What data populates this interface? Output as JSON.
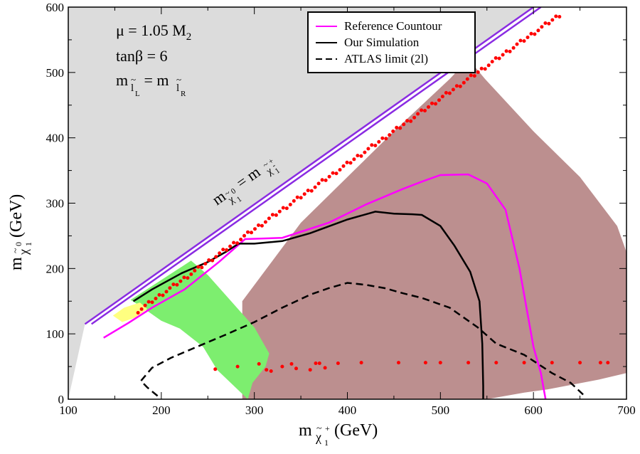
{
  "chart_data": {
    "type": "line",
    "xlabel": "m(χ̃1±) (GeV)",
    "ylabel": "m(χ̃1⁰) (GeV)",
    "xlim": [
      100,
      700
    ],
    "ylim": [
      0,
      600
    ],
    "x_ticks": [
      "100",
      "200",
      "300",
      "400",
      "500",
      "600",
      "700"
    ],
    "y_ticks": [
      "0",
      "100",
      "200",
      "300",
      "400",
      "500",
      "600"
    ],
    "grid": false,
    "legend_position": "top-center",
    "annotations": {
      "mu": "μ = 1.05 M",
      "mu_sub": "2",
      "tanbeta": "tanβ = 6",
      "slepton_m1": "m",
      "slepton_sub1": "l",
      "slepton_sub1b": "L",
      "slepton_eq": " = m",
      "slepton_sub2": "l",
      "slepton_sub2b": "R",
      "tilde": "~",
      "diag_m": "m",
      "diag_chi0": "χ",
      "diag_chi0_sub": "1",
      "diag_eq": " = m",
      "diag_chi": "χ",
      "diag_chi_sub": "1",
      "diag_pm": "+",
      "diag_minus": "-",
      "ylabel_m": "m",
      "ylabel_chi": "χ",
      "ylabel_sub": "1",
      "ylabel_sup": "0",
      "ylabel_unit": " (GeV)",
      "xlabel_m": "m",
      "xlabel_chi": "χ",
      "xlabel_sub": "1",
      "xlabel_sup": "+",
      "xlabel_unit": " (GeV)"
    },
    "legend": [
      {
        "label": "Reference Countour",
        "color": "#ff00ff",
        "style": "solid"
      },
      {
        "label": "Our Simulation",
        "color": "#000000",
        "style": "solid"
      },
      {
        "label": "ATLAS limit (2l)",
        "color": "#000000",
        "style": "dashed"
      }
    ],
    "regions": {
      "kinematic_forbidden": {
        "color": "#dcdcdc",
        "points": [
          [
            100,
            0
          ],
          [
            100,
            600
          ],
          [
            600,
            600
          ],
          [
            118,
            115
          ]
        ]
      },
      "excluded_brown": {
        "color": "#bc8f8f",
        "points": [
          [
            287,
            0
          ],
          [
            287,
            150
          ],
          [
            350,
            270
          ],
          [
            450,
            410
          ],
          [
            510,
            490
          ],
          [
            525,
            513
          ],
          [
            535,
            512
          ],
          [
            548,
            490
          ],
          [
            600,
            410
          ],
          [
            650,
            340
          ],
          [
            690,
            265
          ],
          [
            700,
            225
          ],
          [
            700,
            40
          ],
          [
            670,
            30
          ],
          [
            615,
            15
          ],
          [
            590,
            10
          ],
          [
            550,
            0
          ]
        ]
      },
      "green": {
        "color": "#7dee6f",
        "points": [
          [
            167,
            152
          ],
          [
            232,
            212
          ],
          [
            250,
            190
          ],
          [
            300,
            110
          ],
          [
            316,
            70
          ],
          [
            312,
            50
          ],
          [
            298,
            25
          ],
          [
            293,
            0
          ],
          [
            260,
            45
          ],
          [
            245,
            80
          ],
          [
            220,
            108
          ],
          [
            200,
            120
          ],
          [
            180,
            140
          ]
        ]
      },
      "yellow": {
        "color": "#ffff80",
        "points": [
          [
            148,
            128
          ],
          [
            160,
            140
          ],
          [
            177,
            148
          ],
          [
            185,
            138
          ],
          [
            172,
            125
          ],
          [
            158,
            118
          ]
        ]
      }
    },
    "series": [
      {
        "name": "Reference Countour",
        "color": "#ff00ff",
        "dash": "none",
        "points": [
          [
            138,
            94
          ],
          [
            165,
            117
          ],
          [
            190,
            140
          ],
          [
            225,
            168
          ],
          [
            262,
            210
          ],
          [
            290,
            245
          ],
          [
            330,
            247
          ],
          [
            380,
            270
          ],
          [
            420,
            298
          ],
          [
            460,
            322
          ],
          [
            482,
            334
          ],
          [
            500,
            343
          ],
          [
            530,
            344
          ],
          [
            550,
            330
          ],
          [
            570,
            290
          ],
          [
            585,
            200
          ],
          [
            600,
            80
          ],
          [
            608,
            40
          ],
          [
            613,
            0
          ]
        ]
      },
      {
        "name": "Our Simulation",
        "color": "#000000",
        "dash": "none",
        "points": [
          [
            170,
            150
          ],
          [
            190,
            168
          ],
          [
            222,
            193
          ],
          [
            250,
            210
          ],
          [
            270,
            226
          ],
          [
            283,
            238
          ],
          [
            300,
            238
          ],
          [
            330,
            242
          ],
          [
            360,
            254
          ],
          [
            400,
            275
          ],
          [
            430,
            287
          ],
          [
            450,
            284
          ],
          [
            470,
            283
          ],
          [
            480,
            282
          ],
          [
            500,
            265
          ],
          [
            515,
            235
          ],
          [
            532,
            195
          ],
          [
            542,
            150
          ],
          [
            545,
            85
          ],
          [
            546,
            20
          ],
          [
            546,
            0
          ]
        ]
      },
      {
        "name": "ATLAS limit (2l)",
        "color": "#000000",
        "dash": "10,6",
        "points": [
          [
            196,
            5
          ],
          [
            185,
            18
          ],
          [
            178,
            28
          ],
          [
            190,
            48
          ],
          [
            210,
            63
          ],
          [
            238,
            80
          ],
          [
            268,
            98
          ],
          [
            300,
            118
          ],
          [
            330,
            140
          ],
          [
            360,
            160
          ],
          [
            380,
            170
          ],
          [
            400,
            178
          ],
          [
            420,
            175
          ],
          [
            440,
            170
          ],
          [
            460,
            162
          ],
          [
            480,
            155
          ],
          [
            510,
            140
          ],
          [
            540,
            110
          ],
          [
            560,
            85
          ],
          [
            590,
            68
          ],
          [
            620,
            40
          ],
          [
            640,
            25
          ],
          [
            655,
            5
          ]
        ]
      },
      {
        "name": "Kinematic boundary",
        "color": "#8a2be2",
        "dash": "none",
        "points": [
          [
            118,
            115
          ],
          [
            600,
            600
          ]
        ]
      },
      {
        "name": "Kinematic boundary (inner)",
        "color": "#8a2be2",
        "dash": "none",
        "points": [
          [
            125,
            115
          ],
          [
            608,
            600
          ]
        ]
      }
    ],
    "scatter": {
      "name": "Simulated points",
      "color": "#ff0000",
      "diagonal": {
        "x_start": 175,
        "x_end": 628,
        "offset": 40,
        "count": 120
      },
      "bottom_row_x": [
        258,
        282,
        305,
        313,
        318,
        330,
        340,
        345,
        360,
        366,
        370,
        376,
        390,
        415,
        455,
        484,
        500,
        530,
        560,
        590,
        620,
        650,
        672,
        680
      ],
      "bottom_row_y": [
        46,
        50,
        54,
        45,
        43,
        50,
        54,
        47,
        45,
        55,
        55,
        48,
        55,
        56,
        56,
        56,
        56,
        56,
        56,
        56,
        56,
        56,
        56,
        56
      ]
    }
  }
}
